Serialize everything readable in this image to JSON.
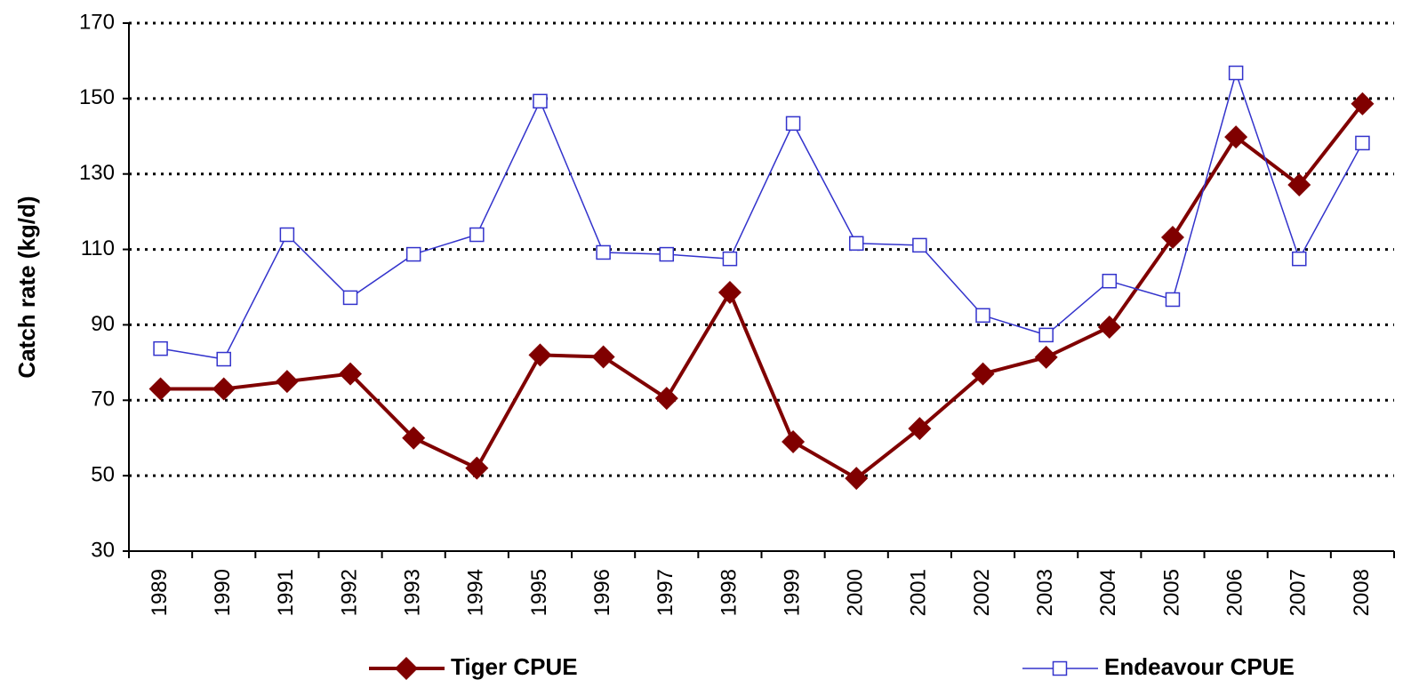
{
  "chart_data": {
    "type": "line",
    "y_label": "Catch rate (kg/d)",
    "categories": [
      "1989",
      "1990",
      "1991",
      "1992",
      "1993",
      "1994",
      "1995",
      "1996",
      "1997",
      "1998",
      "1999",
      "2000",
      "2001",
      "2002",
      "2003",
      "2004",
      "2005",
      "2006",
      "2007",
      "2008"
    ],
    "series": [
      {
        "name": "Tiger CPUE",
        "color": "#800000",
        "marker": "diamond",
        "values": [
          73,
          73,
          75,
          77,
          60,
          52,
          82,
          81.5,
          70.5,
          98.6,
          59,
          49.3,
          62.5,
          77,
          81.4,
          89.4,
          113.2,
          139.8,
          127.1,
          148.6
        ]
      },
      {
        "name": "Endeavour CPUE",
        "color": "#3333cc",
        "marker": "square",
        "values": [
          83.7,
          80.9,
          113.9,
          97.2,
          108.7,
          113.9,
          149.3,
          109.2,
          108.7,
          107.5,
          143.4,
          111.6,
          111.1,
          92.5,
          87.3,
          101.6,
          96.7,
          156.8,
          107.5,
          138.2
        ]
      }
    ],
    "ylim": [
      30,
      170
    ],
    "yticks": [
      30,
      50,
      70,
      90,
      110,
      130,
      150,
      170
    ],
    "grid": true
  }
}
